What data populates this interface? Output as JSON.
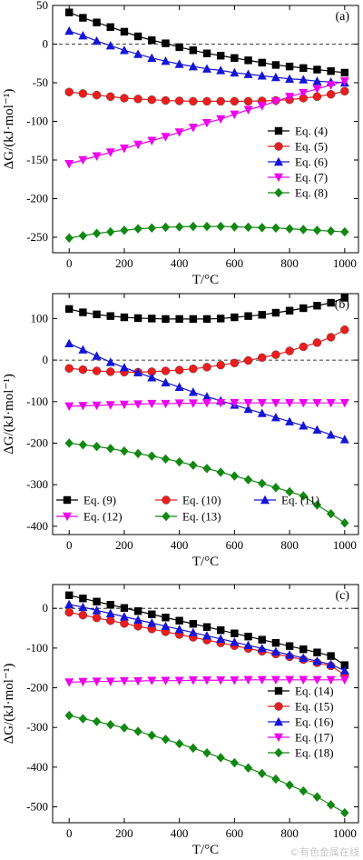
{
  "x_axis_label": "T/°C",
  "y_axis_label": "ΔG/(kJ·mol⁻¹)",
  "watermark": "©有色金属在线",
  "chart_data": [
    {
      "type": "line",
      "panel_label": "(a)",
      "xlabel": "T/°C",
      "ylabel": "ΔG/(kJ·mol⁻¹)",
      "xlim": [
        -60,
        1050
      ],
      "ylim": [
        -270,
        50
      ],
      "xticks": [
        0,
        200,
        400,
        600,
        800,
        1000
      ],
      "yticks": [
        50,
        0,
        -50,
        -100,
        -150,
        -200,
        -250
      ],
      "zero_line": true,
      "legend_position": "right",
      "legend_columns": 1,
      "x": [
        0,
        50,
        100,
        150,
        200,
        250,
        300,
        350,
        400,
        450,
        500,
        550,
        600,
        650,
        700,
        750,
        800,
        850,
        900,
        950,
        1000
      ],
      "series": [
        {
          "name": "Eq. (4)",
          "marker": "square",
          "color": "#000000",
          "values": [
            41,
            34,
            28,
            22,
            16,
            10,
            5,
            1,
            -4,
            -8,
            -12,
            -15,
            -18,
            -21,
            -24,
            -27,
            -29,
            -31,
            -33,
            -35,
            -37
          ]
        },
        {
          "name": "Eq. (5)",
          "marker": "circle",
          "color": "#ee1c1c",
          "values": [
            -62,
            -64,
            -66,
            -68,
            -70,
            -71,
            -72,
            -73,
            -73.5,
            -74,
            -74,
            -74,
            -74,
            -74,
            -73.5,
            -73,
            -72,
            -70,
            -68,
            -65,
            -61
          ]
        },
        {
          "name": "Eq. (6)",
          "marker": "triangle-up",
          "color": "#1515d8",
          "values": [
            17,
            11,
            4,
            -2,
            -8,
            -13,
            -18,
            -22,
            -26,
            -29,
            -32,
            -34,
            -37,
            -39,
            -41,
            -43,
            -45,
            -46,
            -48,
            -49,
            -50
          ]
        },
        {
          "name": "Eq. (7)",
          "marker": "triangle-down",
          "color": "#ee00ee",
          "values": [
            -155,
            -150,
            -145,
            -140,
            -135,
            -130,
            -125,
            -120,
            -114,
            -108,
            -102,
            -97,
            -91,
            -85,
            -80,
            -74,
            -68,
            -63,
            -58,
            -53,
            -48
          ]
        },
        {
          "name": "Eq. (8)",
          "marker": "diamond",
          "color": "#118811",
          "values": [
            -251,
            -248,
            -245,
            -243,
            -241,
            -239,
            -238,
            -237,
            -236.5,
            -236,
            -236,
            -236,
            -236.5,
            -237,
            -237.5,
            -238,
            -239,
            -240,
            -241,
            -242,
            -243
          ]
        }
      ]
    },
    {
      "type": "line",
      "panel_label": "(b)",
      "xlabel": "T/°C",
      "ylabel": "ΔG/(kJ·mol⁻¹)",
      "xlim": [
        -60,
        1050
      ],
      "ylim": [
        -420,
        160
      ],
      "xticks": [
        0,
        200,
        400,
        600,
        800,
        1000
      ],
      "yticks": [
        100,
        0,
        -100,
        -200,
        -300,
        -400
      ],
      "zero_line": true,
      "legend_position": "bottom-left",
      "legend_columns": 3,
      "x": [
        0,
        50,
        100,
        150,
        200,
        250,
        300,
        350,
        400,
        450,
        500,
        550,
        600,
        650,
        700,
        750,
        800,
        850,
        900,
        950,
        1000
      ],
      "series": [
        {
          "name": "Eq. (9)",
          "marker": "square",
          "color": "#000000",
          "values": [
            123,
            115,
            110,
            106,
            103,
            101,
            100,
            99,
            99,
            99,
            99,
            100,
            103,
            106,
            109,
            114,
            119,
            125,
            131,
            138,
            150
          ]
        },
        {
          "name": "Eq. (10)",
          "marker": "circle",
          "color": "#ee1c1c",
          "values": [
            -20,
            -23,
            -26,
            -28,
            -29,
            -29,
            -28,
            -26,
            -24,
            -21,
            -17,
            -12,
            -7,
            -1,
            6,
            13,
            22,
            32,
            42,
            55,
            73
          ]
        },
        {
          "name": "Eq. (11)",
          "marker": "triangle-up",
          "color": "#1515d8",
          "values": [
            40,
            25,
            10,
            -5,
            -18,
            -30,
            -42,
            -54,
            -65,
            -77,
            -88,
            -98,
            -108,
            -118,
            -128,
            -138,
            -148,
            -158,
            -168,
            -180,
            -191
          ]
        },
        {
          "name": "Eq. (12)",
          "marker": "triangle-down",
          "color": "#ee00ee",
          "values": [
            -111,
            -110,
            -109,
            -108,
            -107,
            -106,
            -105,
            -105,
            -104,
            -104,
            -103,
            -103,
            -103,
            -103,
            -103,
            -103,
            -103,
            -103,
            -103,
            -103,
            -103
          ]
        },
        {
          "name": "Eq. (13)",
          "marker": "diamond",
          "color": "#118811",
          "values": [
            -200,
            -204,
            -208,
            -213,
            -219,
            -225,
            -231,
            -238,
            -245,
            -253,
            -261,
            -270,
            -279,
            -288,
            -297,
            -307,
            -317,
            -327,
            -349,
            -370,
            -392
          ]
        }
      ]
    },
    {
      "type": "line",
      "panel_label": "(c)",
      "xlabel": "T/°C",
      "ylabel": "ΔG/(kJ·mol⁻¹)",
      "xlim": [
        -60,
        1050
      ],
      "ylim": [
        -540,
        60
      ],
      "xticks": [
        0,
        200,
        400,
        600,
        800,
        1000
      ],
      "yticks": [
        0,
        -100,
        -200,
        -300,
        -400,
        -500
      ],
      "zero_line": true,
      "legend_position": "right",
      "legend_columns": 1,
      "x": [
        0,
        50,
        100,
        150,
        200,
        250,
        300,
        350,
        400,
        450,
        500,
        550,
        600,
        650,
        700,
        750,
        800,
        850,
        900,
        950,
        1000
      ],
      "series": [
        {
          "name": "Eq. (14)",
          "marker": "square",
          "color": "#000000",
          "values": [
            33,
            25,
            17,
            9,
            1,
            -7,
            -15,
            -23,
            -31,
            -39,
            -47,
            -55,
            -63,
            -71,
            -79,
            -87,
            -95,
            -103,
            -111,
            -120,
            -143
          ]
        },
        {
          "name": "Eq. (15)",
          "marker": "circle",
          "color": "#ee1c1c",
          "values": [
            -10,
            -17,
            -24,
            -31,
            -38,
            -45,
            -52,
            -59,
            -66,
            -73,
            -80,
            -87,
            -94,
            -101,
            -108,
            -115,
            -122,
            -129,
            -137,
            -145,
            -167
          ]
        },
        {
          "name": "Eq. (16)",
          "marker": "triangle-up",
          "color": "#1515d8",
          "values": [
            10,
            3,
            -5,
            -13,
            -21,
            -29,
            -37,
            -45,
            -53,
            -61,
            -69,
            -77,
            -85,
            -93,
            -101,
            -109,
            -117,
            -125,
            -133,
            -141,
            -157
          ]
        },
        {
          "name": "Eq. (17)",
          "marker": "triangle-down",
          "color": "#ee00ee",
          "values": [
            -186,
            -185,
            -184,
            -184,
            -183,
            -183,
            -182,
            -182,
            -182,
            -181,
            -181,
            -181,
            -181,
            -180,
            -180,
            -180,
            -180,
            -180,
            -180,
            -180,
            -180
          ]
        },
        {
          "name": "Eq. (18)",
          "marker": "diamond",
          "color": "#118811",
          "values": [
            -270,
            -278,
            -285,
            -293,
            -301,
            -310,
            -320,
            -330,
            -341,
            -352,
            -364,
            -376,
            -389,
            -402,
            -416,
            -430,
            -445,
            -460,
            -475,
            -495,
            -515
          ]
        }
      ]
    }
  ]
}
